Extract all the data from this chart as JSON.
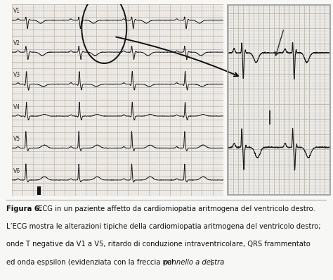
{
  "bg_color": "#f7f7f5",
  "ecg_bg": "#e8e2d8",
  "grid_minor_color": "#cfc8be",
  "grid_major_color": "#bfb8ae",
  "ecg_line_color": "#1a1a1a",
  "leads": [
    "V1",
    "V2",
    "V3",
    "V4",
    "V5",
    "V6"
  ],
  "caption_bold": "Figura 6.",
  "caption_line1": " ECG in un paziente affetto da cardiomiopatia aritmogena del ventricolo destro.",
  "caption_line2": "L’ECG mostra le alterazioni tipiche della cardiomiopatia aritmogena del ventricolo destro;",
  "caption_line3": "onde T negative da V1 a V5, ritardo di conduzione intraventricolare, QRS frammentato",
  "caption_line4a": "ed onda espsilon (evidenziata con la freccia nel ",
  "caption_line4b": "pannello a destra",
  "caption_line4c": ").",
  "caption_fontsize": 7.2,
  "sep_color": "#aaaaaa",
  "inset_bg": "#ddd8ce",
  "inset_grid_minor": "#c8c2b8",
  "inset_grid_major": "#b8b2a8"
}
